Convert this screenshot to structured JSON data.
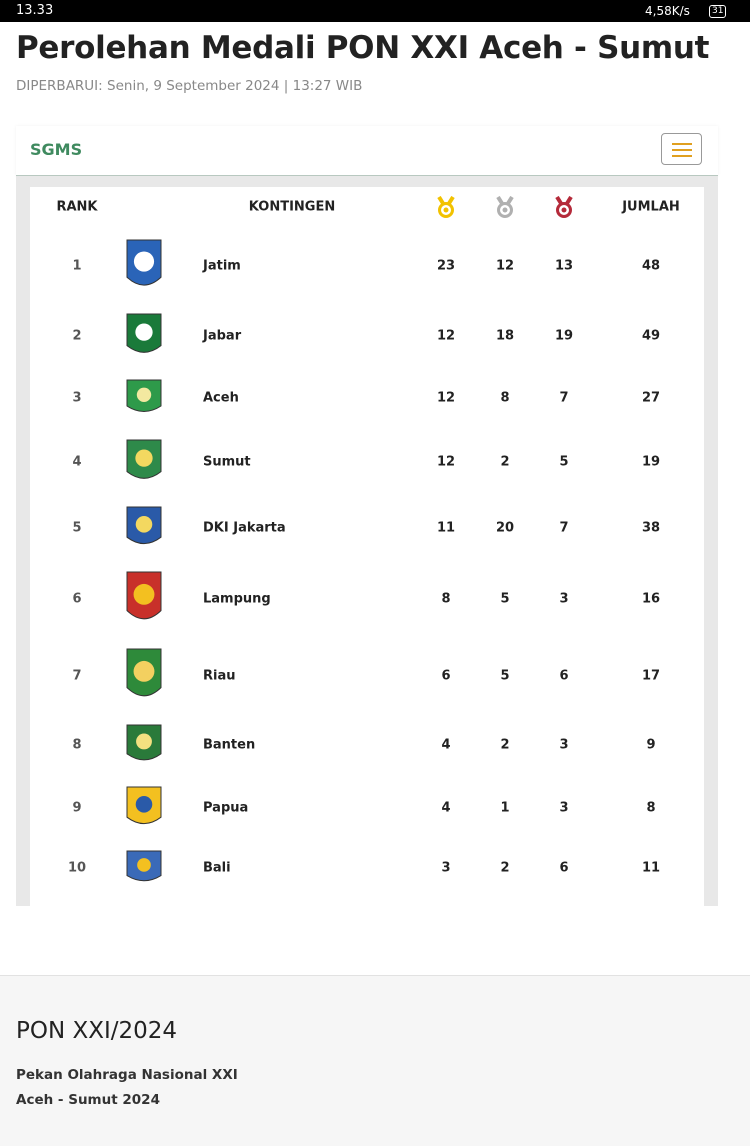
{
  "status_bar": {
    "time": "13.33",
    "speed": "4,58K/s",
    "battery": "31"
  },
  "header": {
    "title": "Perolehan Medali PON XXI Aceh - Sumut",
    "updated": "DIPERBARUI: Senin, 9 September 2024 | 13:27 WIB"
  },
  "navbar": {
    "brand": "SGMS"
  },
  "table": {
    "columns": {
      "rank": "RANK",
      "contingent": "KONTINGEN",
      "total": "JUMLAH"
    },
    "rows": [
      [
        1,
        "Jatim",
        23,
        12,
        13,
        48
      ],
      [
        2,
        "Jabar",
        12,
        18,
        19,
        49
      ],
      [
        3,
        "Aceh",
        12,
        8,
        7,
        27
      ],
      [
        4,
        "Sumut",
        12,
        2,
        5,
        19
      ],
      [
        5,
        "DKI Jakarta",
        11,
        20,
        7,
        38
      ],
      [
        6,
        "Lampung",
        8,
        5,
        3,
        16
      ],
      [
        7,
        "Riau",
        6,
        5,
        6,
        17
      ],
      [
        8,
        "Banten",
        4,
        2,
        3,
        9
      ],
      [
        9,
        "Papua",
        4,
        1,
        3,
        8
      ],
      [
        10,
        "Bali",
        3,
        2,
        6,
        11
      ]
    ]
  },
  "footer": {
    "title": "PON XXI/2024",
    "lines": [
      "Pekan Olahraga Nasional XXI",
      "Aceh - Sumut 2024"
    ]
  }
}
